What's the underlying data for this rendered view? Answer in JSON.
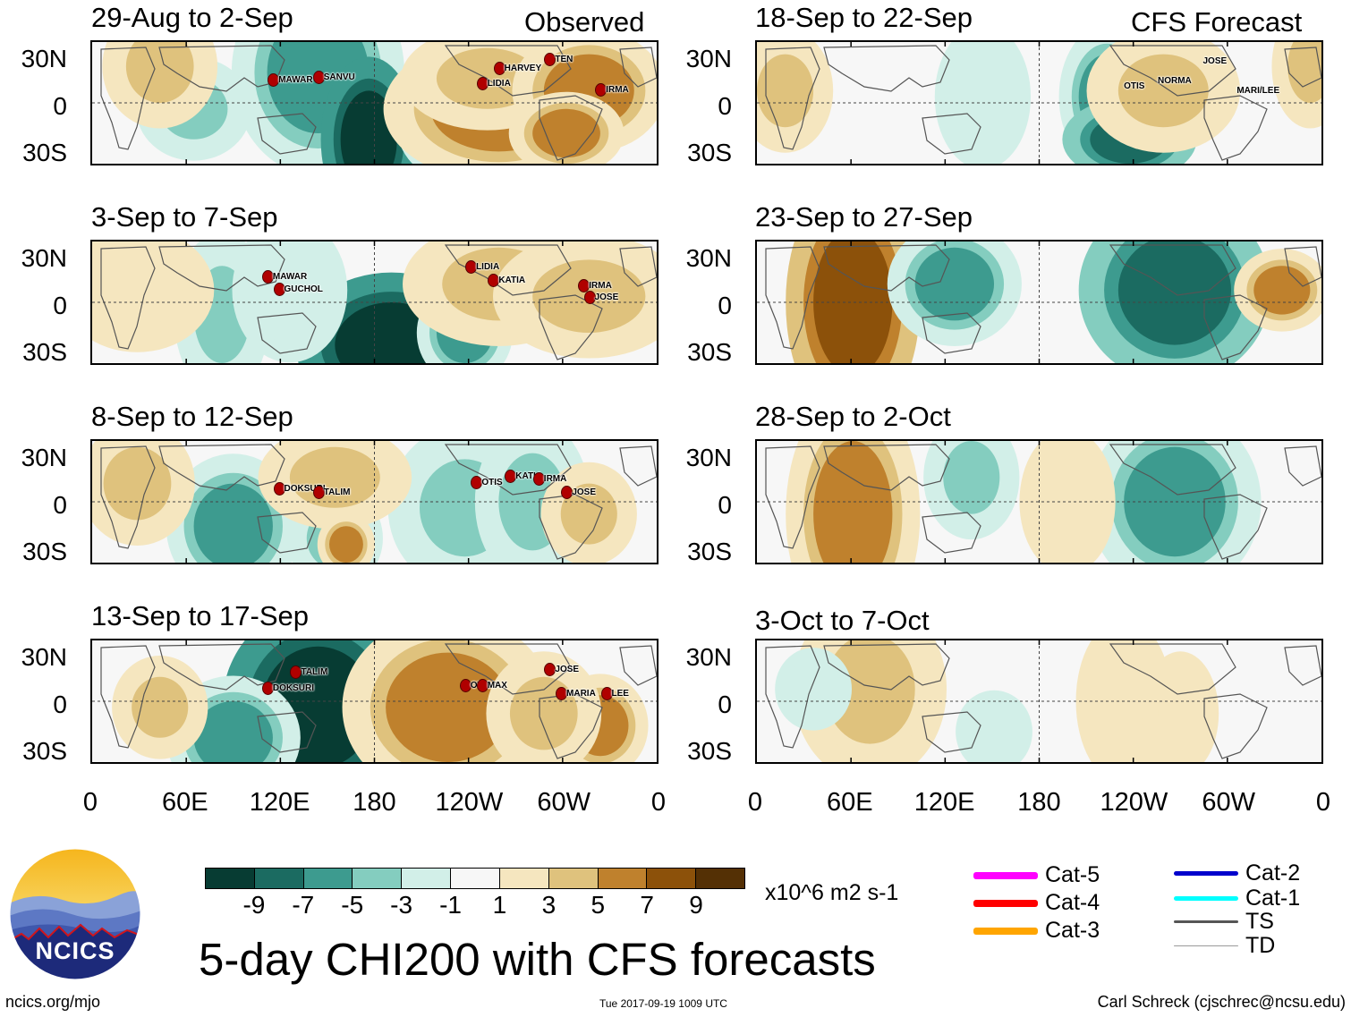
{
  "header": {
    "observed_label": "Observed",
    "forecast_label": "CFS Forecast"
  },
  "panels_observed": [
    {
      "title": "29-Aug to 2-Sep",
      "storms": [
        {
          "name": "MAWAR"
        },
        {
          "name": "SANVU"
        },
        {
          "name": "TEN"
        },
        {
          "name": "HARVEY"
        },
        {
          "name": "LIDIA"
        },
        {
          "name": "IRMA"
        }
      ]
    },
    {
      "title": "3-Sep to 7-Sep",
      "storms": [
        {
          "name": "MAWAR"
        },
        {
          "name": "GUCHOL"
        },
        {
          "name": "LIDIA"
        },
        {
          "name": "KATIA"
        },
        {
          "name": "IRMA"
        },
        {
          "name": "JOSE"
        }
      ]
    },
    {
      "title": "8-Sep to 12-Sep",
      "storms": [
        {
          "name": "DOKSURI"
        },
        {
          "name": "TALIM"
        },
        {
          "name": "OTIS"
        },
        {
          "name": "KATIA"
        },
        {
          "name": "IRMA"
        },
        {
          "name": "JOSE"
        }
      ]
    },
    {
      "title": "13-Sep to 17-Sep",
      "storms": [
        {
          "name": "TALIM"
        },
        {
          "name": "DOKSURI"
        },
        {
          "name": "OTIS"
        },
        {
          "name": "MAX"
        },
        {
          "name": "JOSE"
        },
        {
          "name": "MARIA"
        },
        {
          "name": "LEE"
        }
      ]
    }
  ],
  "panels_forecast": [
    {
      "title": "18-Sep to 22-Sep",
      "storms": [
        {
          "name": "JOSE"
        },
        {
          "name": "OTIS"
        },
        {
          "name": "NORMA"
        },
        {
          "name": "MARI/LEE"
        }
      ]
    },
    {
      "title": "23-Sep to 27-Sep",
      "storms": []
    },
    {
      "title": "28-Sep to 2-Oct",
      "storms": []
    },
    {
      "title": "3-Oct to 7-Oct",
      "storms": []
    }
  ],
  "lat_labels": [
    "30N",
    "0",
    "30S"
  ],
  "lon_labels": [
    "0",
    "60E",
    "120E",
    "180",
    "120W",
    "60W",
    "0"
  ],
  "colorbar": {
    "colors": [
      "#073c33",
      "#1b6b61",
      "#3d9b8f",
      "#84cdbf",
      "#d2efe8",
      "#f7f7f7",
      "#f5e6bf",
      "#dfc27d",
      "#bf812d",
      "#8c510a",
      "#543005"
    ],
    "ticks": [
      "-9",
      "-7",
      "-5",
      "-3",
      "-1",
      "1",
      "3",
      "5",
      "7",
      "9"
    ],
    "units": "x10^6 m2 s-1"
  },
  "legend": [
    {
      "label": "Cat-5",
      "color": "#ff00ff",
      "weight": "thick"
    },
    {
      "label": "Cat-4",
      "color": "#ff0000",
      "weight": "thick"
    },
    {
      "label": "Cat-3",
      "color": "#ffa500",
      "weight": "thick"
    },
    {
      "label": "Cat-2",
      "color": "#0000cc",
      "weight": "medium"
    },
    {
      "label": "Cat-1",
      "color": "#00ffff",
      "weight": "medium"
    },
    {
      "label": "TS",
      "color": "#555555",
      "weight": "thin"
    },
    {
      "label": "TD",
      "color": "#999999",
      "weight": "hairline"
    }
  ],
  "logo": {
    "text": "NCICS"
  },
  "title": "5-day CHI200 with CFS forecasts",
  "footer": {
    "left": "ncics.org/mjo",
    "center": "Tue 2017-09-19 1009 UTC",
    "right": "Carl Schreck (cjschrec@ncsu.edu)"
  }
}
